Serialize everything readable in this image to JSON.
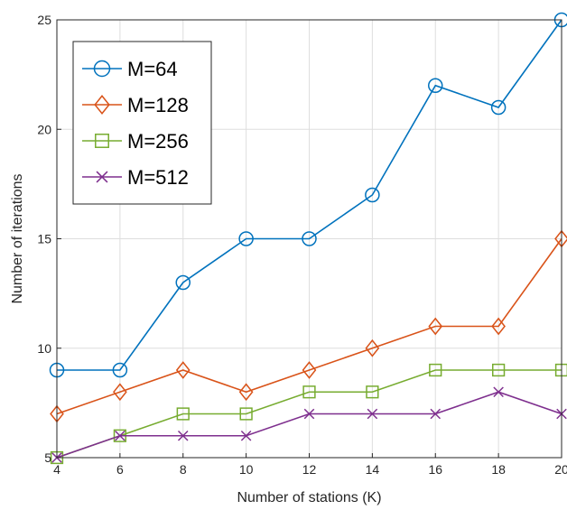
{
  "chart_data": {
    "type": "line",
    "xlabel": "Number of stations (K)",
    "ylabel": "Number of iterations",
    "x": [
      4,
      6,
      8,
      10,
      12,
      14,
      16,
      18,
      20
    ],
    "xlim": [
      4,
      20
    ],
    "ylim": [
      5,
      25
    ],
    "xticks": [
      "4",
      "6",
      "8",
      "10",
      "12",
      "14",
      "16",
      "18",
      "20"
    ],
    "yticks": [
      "5",
      "10",
      "15",
      "20",
      "25"
    ],
    "grid": true,
    "legend_position": "top-left",
    "series": [
      {
        "name": "M=64",
        "marker": "circle",
        "color": "#0072BD",
        "values": [
          9,
          9,
          13,
          15,
          15,
          17,
          22,
          21,
          25
        ]
      },
      {
        "name": "M=128",
        "marker": "diamond",
        "color": "#D95319",
        "values": [
          7,
          8,
          9,
          8,
          9,
          10,
          11,
          11,
          15
        ]
      },
      {
        "name": "M=256",
        "marker": "square",
        "color": "#77AC30",
        "values": [
          5,
          6,
          7,
          7,
          8,
          8,
          9,
          9,
          9
        ]
      },
      {
        "name": "M=512",
        "marker": "x",
        "color": "#7E2F8E",
        "values": [
          5,
          6,
          6,
          6,
          7,
          7,
          7,
          8,
          7
        ]
      }
    ]
  }
}
